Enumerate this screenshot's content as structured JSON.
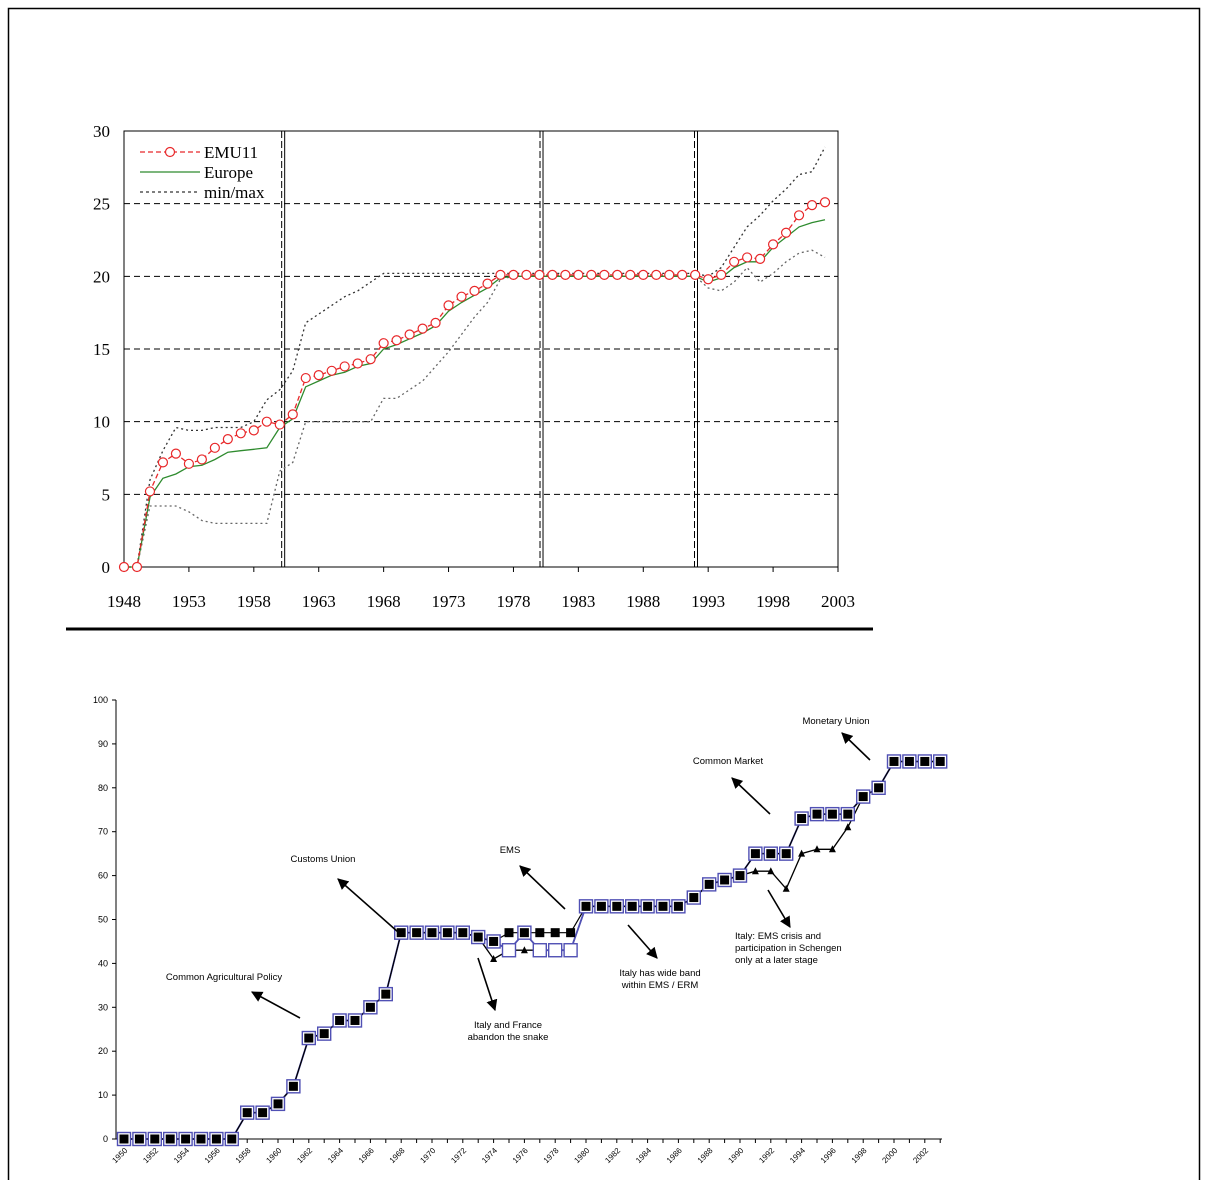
{
  "chart_data": [
    {
      "type": "line",
      "title": "",
      "xlabel": "",
      "ylabel": "",
      "xlim": [
        1948,
        2003
      ],
      "ylim": [
        0,
        30
      ],
      "x_ticks": [
        "1948",
        "1953",
        "1958",
        "1963",
        "1968",
        "1973",
        "1978",
        "1983",
        "1988",
        "1993",
        "1998",
        "2003"
      ],
      "y_ticks": [
        "0",
        "5",
        "10",
        "15",
        "20",
        "25",
        "30"
      ],
      "grid": "horizontal dashed",
      "legend_position": "top-left",
      "vlines": [
        1960.3,
        1980.2,
        1992.1
      ],
      "x": [
        1948,
        1949,
        1950,
        1951,
        1952,
        1953,
        1954,
        1955,
        1956,
        1957,
        1958,
        1959,
        1960,
        1961,
        1962,
        1963,
        1964,
        1965,
        1966,
        1967,
        1968,
        1969,
        1970,
        1971,
        1972,
        1973,
        1974,
        1975,
        1976,
        1977,
        1978,
        1979,
        1980,
        1981,
        1982,
        1983,
        1984,
        1985,
        1986,
        1987,
        1988,
        1989,
        1990,
        1991,
        1992,
        1993,
        1994,
        1995,
        1996,
        1997,
        1998,
        1999,
        2000,
        2001,
        2002
      ],
      "series": [
        {
          "name": "EMU11",
          "color": "#e8282a",
          "style": "dashed-circles",
          "values": [
            0,
            0,
            5.2,
            7.2,
            7.8,
            7.1,
            7.4,
            8.2,
            8.8,
            9.2,
            9.4,
            10.0,
            9.8,
            10.5,
            13.0,
            13.2,
            13.5,
            13.8,
            14.0,
            14.3,
            15.4,
            15.6,
            16.0,
            16.4,
            16.8,
            18.0,
            18.6,
            19.0,
            19.5,
            20.1,
            20.1,
            20.1,
            20.1,
            20.1,
            20.1,
            20.1,
            20.1,
            20.1,
            20.1,
            20.1,
            20.1,
            20.1,
            20.1,
            20.1,
            20.1,
            19.8,
            20.1,
            21.0,
            21.3,
            21.2,
            22.2,
            23.0,
            24.2,
            24.9,
            25.1
          ]
        },
        {
          "name": "Europe",
          "color": "#2e8b2e",
          "style": "solid",
          "values": [
            0,
            0,
            4.8,
            6.1,
            6.4,
            6.9,
            7.0,
            7.4,
            7.9,
            8.0,
            8.1,
            8.2,
            9.6,
            10.2,
            12.4,
            12.8,
            13.2,
            13.4,
            13.8,
            14.0,
            15.0,
            15.3,
            15.7,
            16.1,
            16.6,
            17.6,
            18.2,
            18.7,
            19.2,
            19.9,
            20.0,
            20.0,
            20.0,
            20.0,
            20.0,
            20.0,
            20.0,
            20.0,
            20.0,
            20.0,
            20.0,
            20.0,
            20.0,
            20.0,
            20.0,
            19.6,
            19.9,
            20.6,
            21.0,
            21.0,
            22.0,
            22.7,
            23.4,
            23.7,
            23.9
          ]
        },
        {
          "name": "min/max",
          "color": "#333333",
          "style": "dotted-upper",
          "values": [
            0,
            0,
            6.0,
            8.0,
            9.6,
            9.4,
            9.4,
            9.6,
            9.6,
            9.6,
            10.0,
            11.5,
            12.2,
            13.5,
            16.8,
            17.4,
            18.0,
            18.6,
            19.0,
            19.6,
            20.2,
            20.2,
            20.2,
            20.2,
            20.2,
            20.2,
            20.2,
            20.2,
            20.2,
            20.2,
            20.2,
            20.2,
            20.2,
            20.2,
            20.2,
            20.2,
            20.2,
            20.2,
            20.2,
            20.2,
            20.2,
            20.2,
            20.2,
            20.2,
            20.2,
            20.0,
            20.6,
            22.0,
            23.4,
            24.2,
            25.2,
            26.0,
            27.0,
            27.2,
            28.9
          ]
        },
        {
          "name": "min",
          "color": "#666666",
          "style": "dotted-lower",
          "values": [
            0,
            0,
            4.2,
            4.2,
            4.2,
            3.8,
            3.2,
            3.0,
            3.0,
            3.0,
            3.0,
            3.0,
            6.6,
            7.2,
            10.0,
            10.0,
            10.0,
            10.0,
            10.0,
            10.0,
            11.6,
            11.6,
            12.2,
            12.8,
            13.8,
            14.8,
            16.0,
            17.2,
            18.2,
            19.8,
            20.0,
            20.0,
            20.0,
            20.0,
            20.0,
            20.0,
            20.0,
            20.0,
            20.0,
            20.0,
            20.0,
            20.0,
            20.0,
            20.0,
            20.0,
            19.2,
            19.0,
            19.6,
            20.6,
            19.6,
            20.2,
            21.0,
            21.6,
            21.8,
            21.3
          ]
        }
      ]
    },
    {
      "type": "line",
      "title": "",
      "xlabel": "",
      "ylabel": "",
      "xlim": [
        1950,
        2003
      ],
      "ylim": [
        0,
        100
      ],
      "x_ticks": [
        "1950",
        "1952",
        "1954",
        "1956",
        "1958",
        "1960",
        "1962",
        "1964",
        "1966",
        "1968",
        "1970",
        "1972",
        "1974",
        "1976",
        "1978",
        "1980",
        "1982",
        "1984",
        "1986",
        "1988",
        "1990",
        "1992",
        "1994",
        "1996",
        "1998",
        "2000",
        "2002"
      ],
      "y_ticks": [
        "0",
        "10",
        "20",
        "30",
        "40",
        "50",
        "60",
        "70",
        "80",
        "90",
        "100"
      ],
      "grid": "none",
      "x": [
        1950,
        1951,
        1952,
        1953,
        1954,
        1955,
        1956,
        1957,
        1958,
        1959,
        1960,
        1961,
        1962,
        1963,
        1964,
        1965,
        1966,
        1967,
        1968,
        1969,
        1970,
        1971,
        1972,
        1973,
        1974,
        1975,
        1976,
        1977,
        1978,
        1979,
        1980,
        1981,
        1982,
        1983,
        1984,
        1985,
        1986,
        1987,
        1988,
        1989,
        1990,
        1991,
        1992,
        1993,
        1994,
        1995,
        1996,
        1997,
        1998,
        1999,
        2000,
        2001,
        2002,
        2003
      ],
      "series": [
        {
          "name": "",
          "color": "#5050b4",
          "style": "open-squares",
          "values": [
            0,
            0,
            0,
            0,
            0,
            0,
            0,
            0,
            6,
            6,
            8,
            12,
            23,
            24,
            27,
            27,
            30,
            33,
            47,
            47,
            47,
            47,
            47,
            46,
            45,
            43,
            47,
            43,
            43,
            43,
            53,
            53,
            53,
            53,
            53,
            53,
            53,
            55,
            58,
            59,
            60,
            65,
            65,
            65,
            73,
            74,
            74,
            74,
            78,
            80,
            86,
            86,
            86,
            86
          ]
        },
        {
          "name": "",
          "color": "#000000",
          "style": "filled-squares",
          "values": [
            0,
            0,
            0,
            0,
            0,
            0,
            0,
            0,
            6,
            6,
            8,
            12,
            23,
            24,
            27,
            27,
            30,
            33,
            47,
            47,
            47,
            47,
            47,
            46,
            45,
            47,
            47,
            47,
            47,
            47,
            53,
            53,
            53,
            53,
            53,
            53,
            53,
            55,
            58,
            59,
            60,
            65,
            65,
            65,
            73,
            74,
            74,
            74,
            78,
            80,
            86,
            86,
            86,
            86
          ]
        },
        {
          "name": "",
          "color": "#000000",
          "style": "triangles",
          "values": [
            0,
            0,
            0,
            0,
            0,
            0,
            0,
            0,
            6,
            6,
            8,
            12,
            23,
            24,
            27,
            27,
            30,
            33,
            47,
            47,
            47,
            47,
            47,
            46,
            41,
            43,
            43,
            43,
            43,
            43,
            53,
            53,
            53,
            53,
            53,
            53,
            53,
            55,
            58,
            59,
            60,
            61,
            61,
            57,
            65,
            66,
            66,
            71,
            78,
            80,
            86,
            86,
            86,
            86
          ]
        }
      ],
      "annotations": [
        {
          "text_lines": [
            "Common Agricultural Policy"
          ],
          "x": 1962,
          "y": 23
        },
        {
          "text_lines": [
            "Customs Union"
          ],
          "x": 1968,
          "y": 47
        },
        {
          "text_lines": [
            "Italy and France",
            "abandon the snake"
          ],
          "x": 1974,
          "y": 41
        },
        {
          "text_lines": [
            "EMS"
          ],
          "x": 1979,
          "y": 53
        },
        {
          "text_lines": [
            "Italy has wide band",
            "within EMS / ERM"
          ],
          "x": 1985,
          "y": 53
        },
        {
          "text_lines": [
            "Common Market"
          ],
          "x": 1993,
          "y": 73
        },
        {
          "text_lines": [
            "Italy: EMS crisis and",
            "participation in Schengen",
            "only at a later stage"
          ],
          "x": 1993,
          "y": 57
        },
        {
          "text_lines": [
            "Monetary Union"
          ],
          "x": 1999,
          "y": 86
        }
      ]
    }
  ]
}
